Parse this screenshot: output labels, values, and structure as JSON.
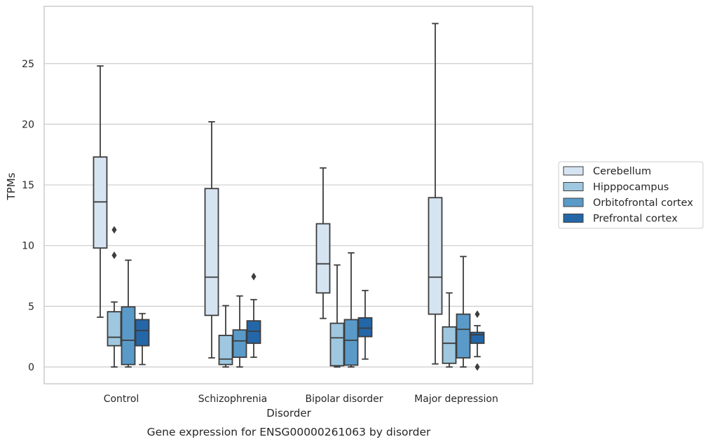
{
  "chart_data": {
    "type": "boxplot",
    "title": "Gene expression for ENSG00000261063 by disorder",
    "xlabel": "Disorder",
    "ylabel": "TPMs",
    "ylim": [
      -1.3,
      29.3
    ],
    "yticks": [
      0,
      5,
      10,
      15,
      20,
      25
    ],
    "grid": "horizontal",
    "legend_position": "right",
    "categories": [
      "Control",
      "Schizophrenia",
      "Bipolar disorder",
      "Major depression"
    ],
    "series": [
      {
        "name": "Cerebellum",
        "color": "#d6e4f2",
        "boxes": [
          {
            "whislo": 4.1,
            "q1": 9.8,
            "med": 13.6,
            "q3": 17.3,
            "whishi": 24.8,
            "fliers": []
          },
          {
            "whislo": 0.75,
            "q1": 4.25,
            "med": 7.4,
            "q3": 14.7,
            "whishi": 20.2,
            "fliers": []
          },
          {
            "whislo": 4.0,
            "q1": 6.1,
            "med": 8.5,
            "q3": 11.8,
            "whishi": 16.4,
            "fliers": []
          },
          {
            "whislo": 0.25,
            "q1": 4.35,
            "med": 7.4,
            "q3": 13.95,
            "whishi": 28.3,
            "fliers": []
          }
        ]
      },
      {
        "name": "Hipppocampus",
        "color": "#9fc8e0",
        "boxes": [
          {
            "whislo": 0.0,
            "q1": 1.75,
            "med": 2.45,
            "q3": 4.55,
            "whishi": 5.35,
            "fliers": [
              11.3,
              9.2
            ]
          },
          {
            "whislo": 0.0,
            "q1": 0.2,
            "med": 0.65,
            "q3": 2.6,
            "whishi": 5.05,
            "fliers": []
          },
          {
            "whislo": 0.0,
            "q1": 0.1,
            "med": 2.4,
            "q3": 3.6,
            "whishi": 8.4,
            "fliers": []
          },
          {
            "whislo": 0.0,
            "q1": 0.3,
            "med": 1.95,
            "q3": 3.3,
            "whishi": 6.1,
            "fliers": []
          }
        ]
      },
      {
        "name": "Orbitofrontal cortex",
        "color": "#5a9ac9",
        "boxes": [
          {
            "whislo": 0.0,
            "q1": 0.2,
            "med": 2.2,
            "q3": 4.95,
            "whishi": 8.8,
            "fliers": []
          },
          {
            "whislo": 0.0,
            "q1": 0.8,
            "med": 2.15,
            "q3": 3.05,
            "whishi": 5.85,
            "fliers": []
          },
          {
            "whislo": 0.0,
            "q1": 0.15,
            "med": 2.2,
            "q3": 3.9,
            "whishi": 9.4,
            "fliers": []
          },
          {
            "whislo": 0.0,
            "q1": 0.75,
            "med": 3.1,
            "q3": 4.35,
            "whishi": 9.1,
            "fliers": []
          }
        ]
      },
      {
        "name": "Prefrontal cortex",
        "color": "#2467a8",
        "boxes": [
          {
            "whislo": 0.2,
            "q1": 1.75,
            "med": 3.0,
            "q3": 3.9,
            "whishi": 4.4,
            "fliers": []
          },
          {
            "whislo": 0.8,
            "q1": 1.95,
            "med": 2.95,
            "q3": 3.8,
            "whishi": 5.55,
            "fliers": [
              7.45
            ]
          },
          {
            "whislo": 0.65,
            "q1": 2.5,
            "med": 3.2,
            "q3": 4.05,
            "whishi": 6.3,
            "fliers": []
          },
          {
            "whislo": 0.85,
            "q1": 1.95,
            "med": 2.65,
            "q3": 2.85,
            "whishi": 3.4,
            "fliers": [
              4.35,
              0.0
            ]
          }
        ]
      }
    ]
  }
}
